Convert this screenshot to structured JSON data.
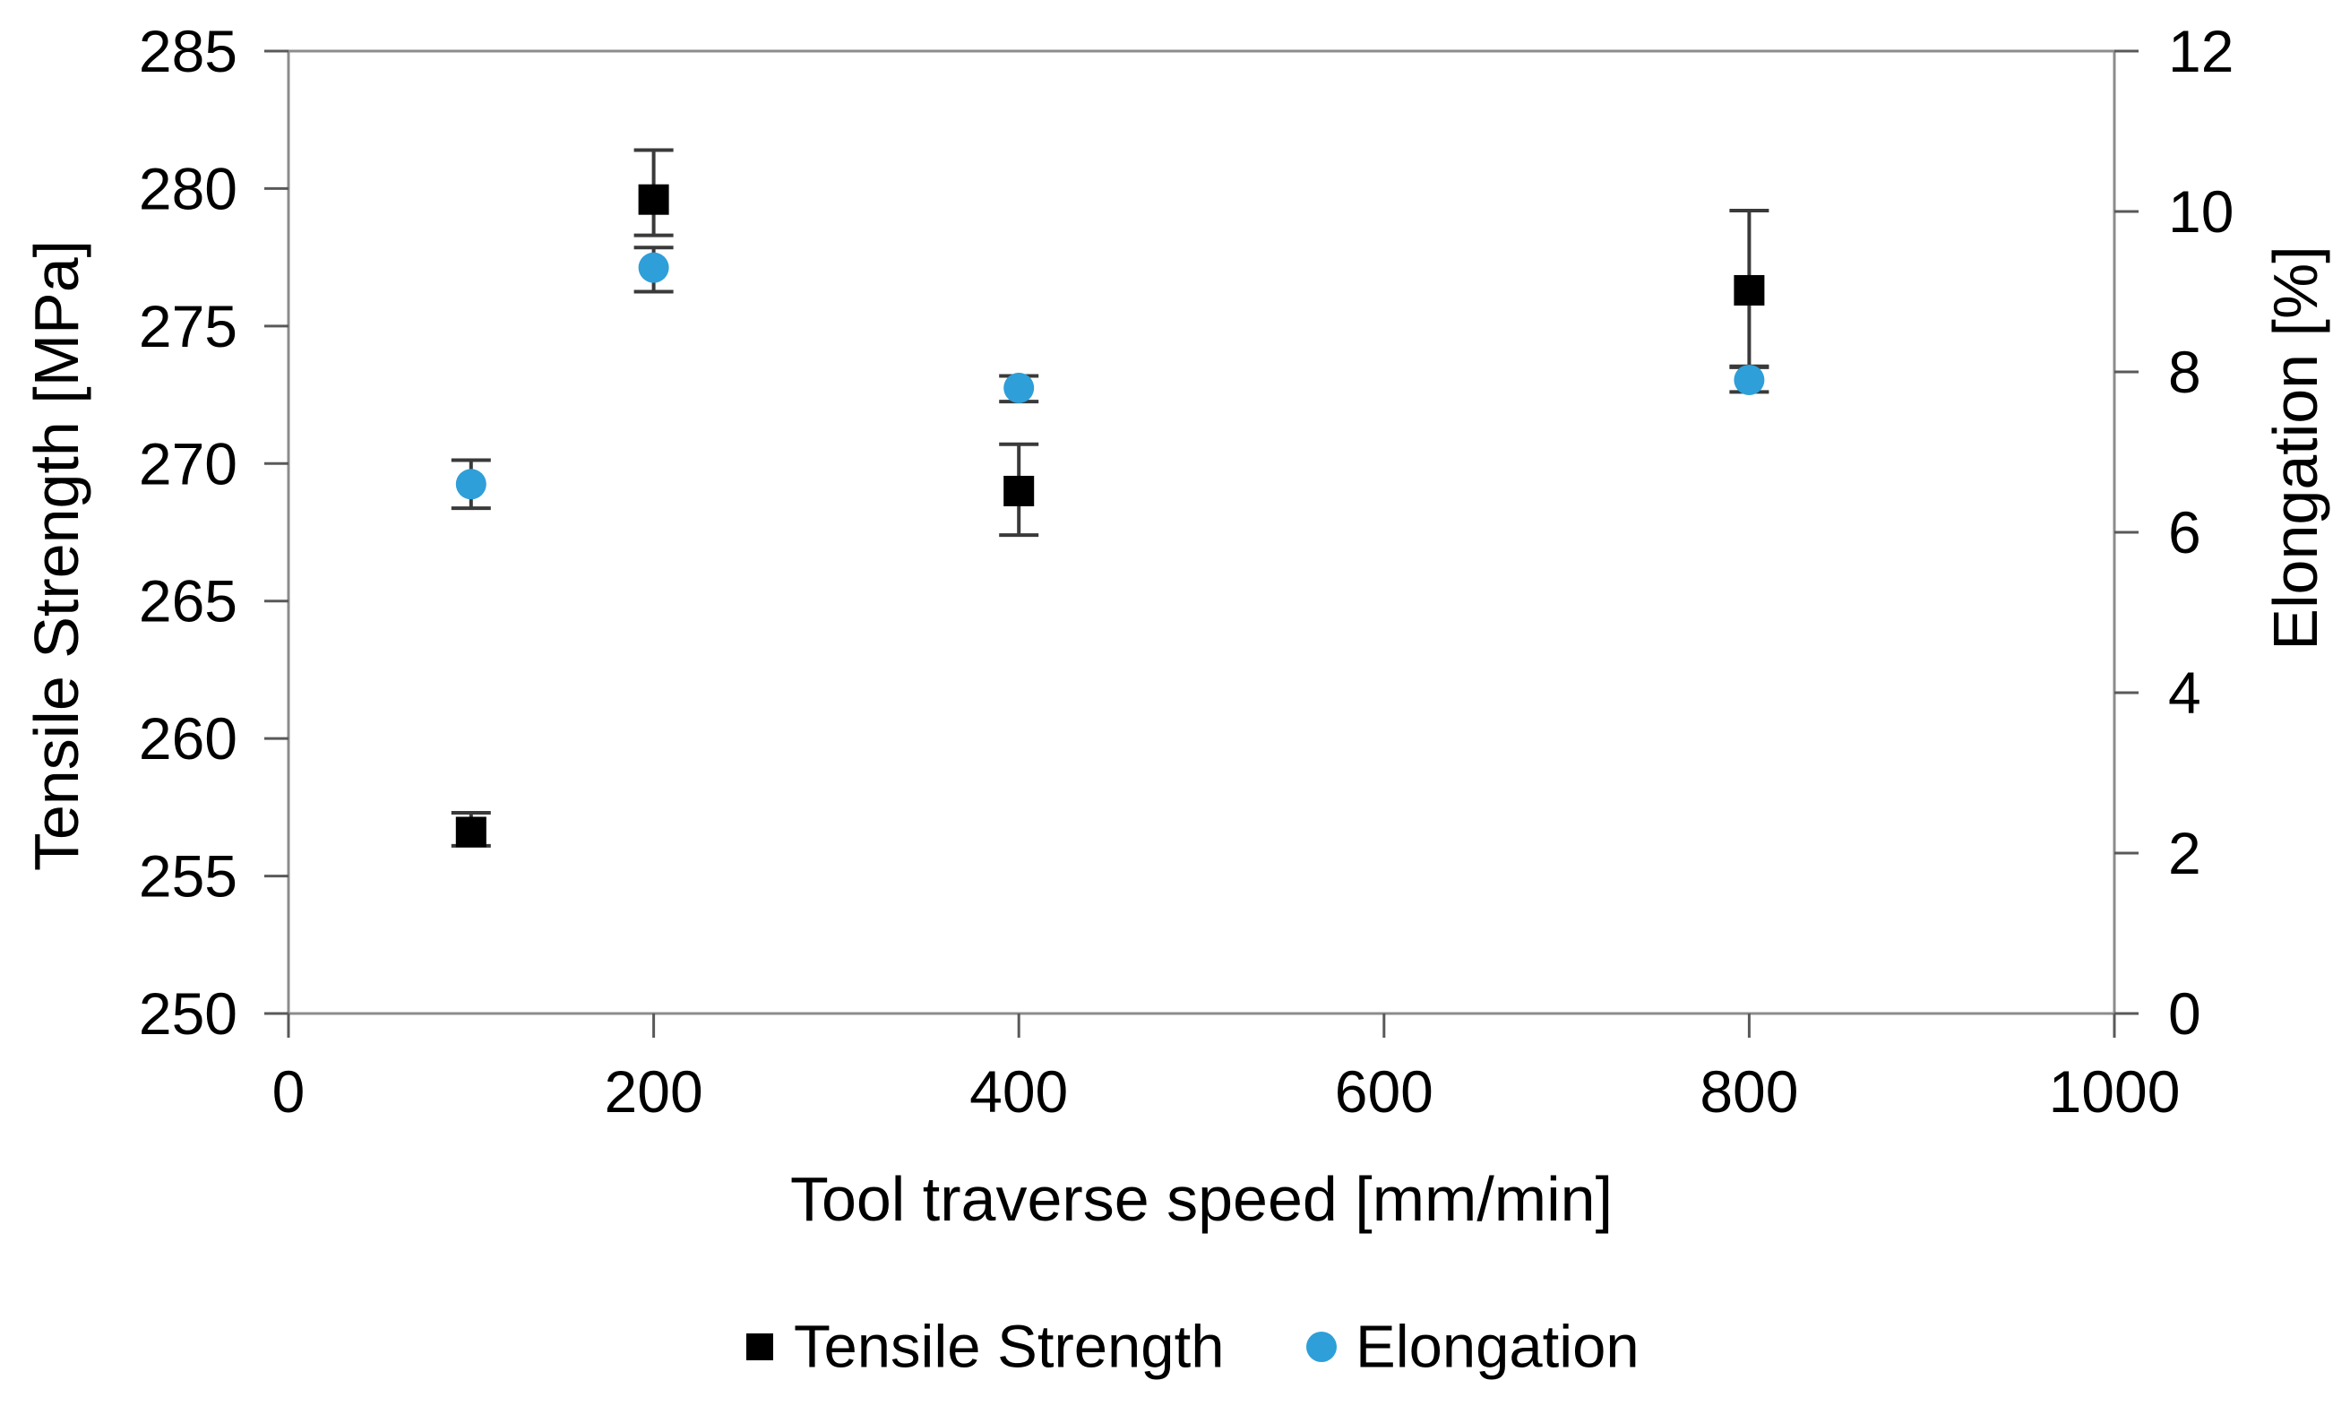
{
  "figure": {
    "background": "#ffffff"
  },
  "chart_data": {
    "type": "scatter",
    "x": [
      100,
      200,
      400,
      800
    ],
    "x_axis": {
      "label": "Tool traverse speed [mm/min]",
      "min": 0,
      "max": 1000,
      "tick_step": 200,
      "ticks": [
        "0",
        "200",
        "400",
        "600",
        "800",
        "1000"
      ]
    },
    "y_axis_left": {
      "label": "Tensile Strength [MPa]",
      "min": 250,
      "max": 285,
      "tick_step": 5,
      "ticks": [
        "250",
        "255",
        "260",
        "265",
        "270",
        "275",
        "280",
        "285"
      ]
    },
    "y_axis_right": {
      "label": "Elongation [%]",
      "min": 0,
      "max": 12,
      "tick_step": 2,
      "ticks": [
        "0",
        "2",
        "4",
        "6",
        "8",
        "10",
        "12"
      ]
    },
    "series": [
      {
        "name": "Tensile Strength",
        "axis": "left",
        "marker": "square",
        "color": "#000000",
        "values": [
          256.6,
          279.6,
          269.0,
          276.3
        ],
        "error_up": [
          0.7,
          1.8,
          1.7,
          2.9
        ],
        "error_down": [
          0.5,
          1.3,
          1.6,
          2.8
        ]
      },
      {
        "name": "Elongation",
        "axis": "right",
        "marker": "circle",
        "color": "#2E9FD8",
        "values": [
          6.6,
          9.3,
          7.8,
          7.9
        ],
        "error_up": [
          0.3,
          0.25,
          0.15,
          0.17
        ],
        "error_down": [
          0.3,
          0.3,
          0.17,
          0.15
        ]
      }
    ],
    "legend": {
      "position": "bottom",
      "items": [
        "Tensile Strength",
        "Elongation"
      ]
    },
    "grid": false,
    "colors": {
      "axis_line": "#8C8C8C",
      "tick": "#595959",
      "error_bar": "#3A3A3A",
      "text": "#000000"
    }
  }
}
